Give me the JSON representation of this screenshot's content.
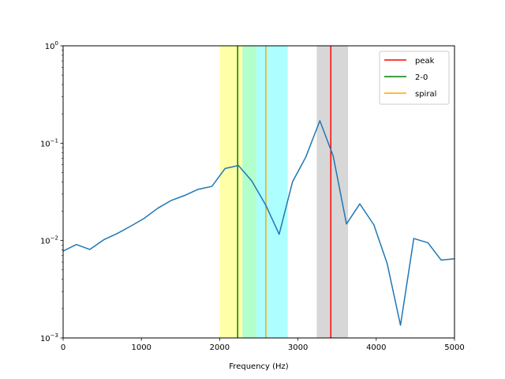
{
  "chart_data": {
    "type": "line",
    "title": "",
    "xlabel": "Frequency (Hz)",
    "ylabel": "",
    "xlim": [
      0,
      5000
    ],
    "ylim": [
      0.001,
      1
    ],
    "yscale": "log",
    "grid": false,
    "legend_position": "top-right",
    "x_ticks": [
      0,
      1000,
      2000,
      3000,
      4000,
      5000
    ],
    "x_tick_labels": [
      "0",
      "1000",
      "2000",
      "3000",
      "4000",
      "5000"
    ],
    "y_ticks": [
      {
        "value": 0.001,
        "base": "10",
        "exp": "−3"
      },
      {
        "value": 0.01,
        "base": "10",
        "exp": "−2"
      },
      {
        "value": 0.1,
        "base": "10",
        "exp": "−1"
      },
      {
        "value": 1,
        "base": "10",
        "exp": "0"
      }
    ],
    "bands": [
      {
        "x0": 2000,
        "x1": 2290,
        "color": "#ffff99",
        "opacity": 0.85
      },
      {
        "x0": 2290,
        "x1": 2470,
        "color": "#b3ffcc",
        "opacity": 1.0
      },
      {
        "x0": 2470,
        "x1": 2870,
        "color": "#99ffff",
        "opacity": 0.8
      },
      {
        "x0": 3240,
        "x1": 3640,
        "color": "#b0b0b0",
        "opacity": 0.5
      }
    ],
    "vlines": [
      {
        "name": "peak",
        "x": 3420,
        "color": "#ff0000"
      },
      {
        "name": "2-0",
        "x": 2230,
        "color": "#008000"
      },
      {
        "name": "spiral",
        "x": 2590,
        "color": "#ffa500"
      }
    ],
    "series": [
      {
        "color": "#1f77b4",
        "x": [
          0,
          170,
          340,
          520,
          690,
          860,
          1030,
          1210,
          1380,
          1550,
          1720,
          1900,
          2070,
          2240,
          2410,
          2590,
          2760,
          2930,
          3100,
          3280,
          3450,
          3620,
          3790,
          3970,
          4140,
          4310,
          4480,
          4660,
          4830,
          5000
        ],
        "y": [
          0.0078,
          0.0091,
          0.0081,
          0.0102,
          0.0118,
          0.014,
          0.0168,
          0.0215,
          0.0258,
          0.029,
          0.0335,
          0.036,
          0.055,
          0.059,
          0.041,
          0.023,
          0.0116,
          0.04,
          0.072,
          0.17,
          0.074,
          0.0148,
          0.0238,
          0.0145,
          0.0058,
          0.00135,
          0.0105,
          0.0095,
          0.0063,
          0.0065
        ]
      }
    ]
  }
}
